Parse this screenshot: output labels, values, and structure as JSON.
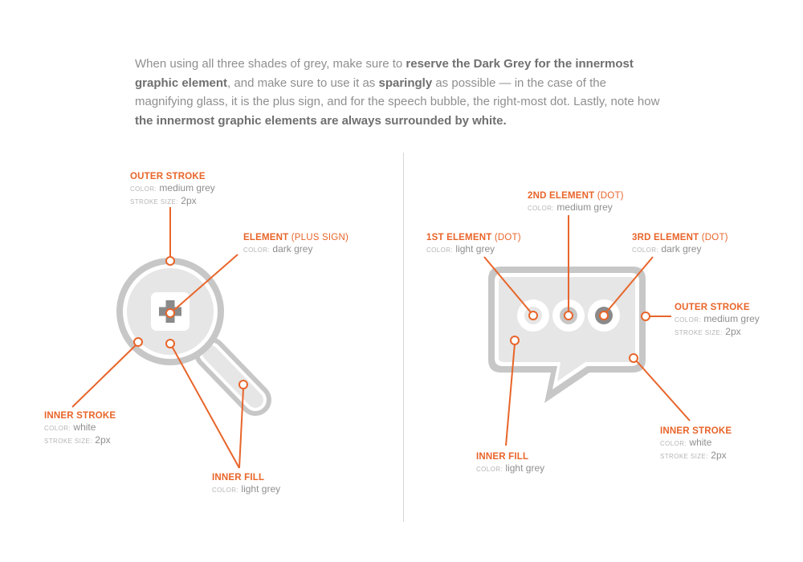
{
  "intro": {
    "t1": "When using all three shades of grey, make sure to ",
    "b1": "reserve the Dark Grey for the innermost graphic element",
    "t2": ", and make sure to use it as ",
    "b2": "sparingly",
    "t3": " as possible — in the case of the magnifying glass, it is the plus sign, and for the speech bubble, the right-most dot. Lastly, note how ",
    "b3": "the innermost graphic elements are always surrounded by white."
  },
  "labels": {
    "color": "color:",
    "stroke_size": "stroke size:"
  },
  "colors": {
    "accent": "#e8652a",
    "medium_grey": "#c7c7c7",
    "light_grey": "#e6e6e6",
    "dark_grey": "#8a8a8a",
    "white": "#ffffff"
  },
  "magnifier": {
    "outer_stroke": {
      "title": "OUTER STROKE",
      "color": "medium grey",
      "stroke_size": "2px"
    },
    "element": {
      "title": "ELEMENT",
      "paren": "(PLUS SIGN)",
      "color": "dark grey"
    },
    "inner_stroke": {
      "title": "INNER STROKE",
      "color": "white",
      "stroke_size": "2px"
    },
    "inner_fill": {
      "title": "INNER FILL",
      "color": "light grey"
    }
  },
  "bubble": {
    "element_2": {
      "title": "2ND ELEMENT",
      "paren": "(DOT)",
      "color": "medium grey"
    },
    "element_1": {
      "title": "1ST ELEMENT",
      "paren": "(DOT)",
      "color": "light grey"
    },
    "element_3": {
      "title": "3RD ELEMENT",
      "paren": "(DOT)",
      "color": "dark grey"
    },
    "outer_stroke": {
      "title": "OUTER STROKE",
      "color": "medium grey",
      "stroke_size": "2px"
    },
    "inner_stroke": {
      "title": "INNER STROKE",
      "color": "white",
      "stroke_size": "2px"
    },
    "inner_fill": {
      "title": "INNER FILL",
      "color": "light grey"
    }
  }
}
